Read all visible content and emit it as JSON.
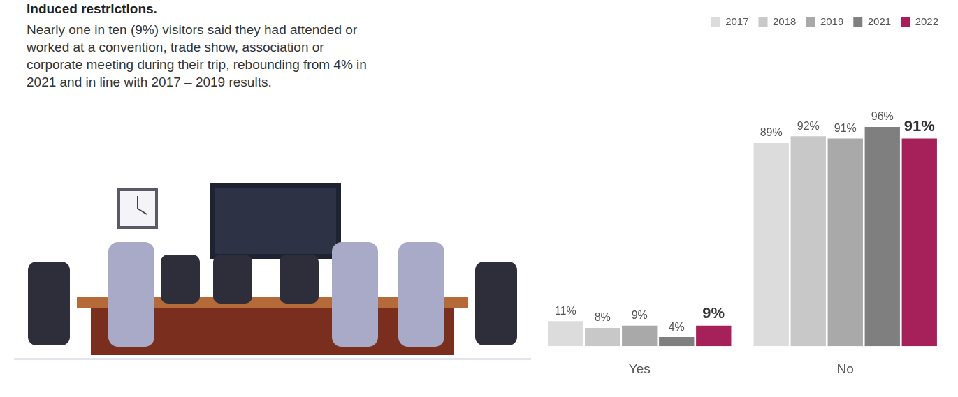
{
  "heading": "induced restrictions.",
  "text": "Nearly one in ten (9%) visitors said they had attended or worked at a convention, trade show, association or corporate meeting during their trip, rebounding from 4% in 2021 and in line with 2017 – 2019 results.",
  "chart_data": {
    "type": "bar",
    "categories": [
      "Yes",
      "No"
    ],
    "series": [
      {
        "name": "2017",
        "color": "#dcdcdc",
        "values": [
          11,
          89
        ],
        "value_labels": [
          "11%",
          "89%"
        ]
      },
      {
        "name": "2018",
        "color": "#c8c8c8",
        "values": [
          8,
          92
        ],
        "value_labels": [
          "8%",
          "92%"
        ]
      },
      {
        "name": "2019",
        "color": "#a9a9a9",
        "values": [
          9,
          91
        ],
        "value_labels": [
          "9%",
          "91%"
        ]
      },
      {
        "name": "2021",
        "color": "#7f7f7f",
        "values": [
          4,
          96
        ],
        "value_labels": [
          "4%",
          "96%"
        ]
      },
      {
        "name": "2022",
        "color": "#a6215a",
        "values": [
          9,
          91
        ],
        "value_labels": [
          "9%",
          "91%"
        ]
      }
    ],
    "ylim": [
      0,
      100
    ],
    "grid": false,
    "legend": "top right",
    "data_labels": true,
    "tick_labels": "x"
  }
}
